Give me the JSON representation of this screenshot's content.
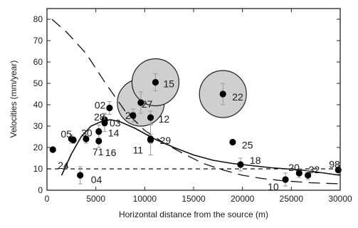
{
  "chart_data": {
    "type": "scatter",
    "xlabel": "Horizontal distance from the source (m)",
    "ylabel": "Velocities (mm/year)",
    "xlim": [
      0,
      30000
    ],
    "ylim": [
      0,
      85
    ],
    "x_ticks": [
      0,
      5000,
      10000,
      15000,
      20000,
      25000,
      30000
    ],
    "y_ticks": [
      0,
      10,
      20,
      30,
      40,
      50,
      60,
      70,
      80
    ],
    "x_tick_labels": [
      "0",
      "5000",
      "10000",
      "15000",
      "20000",
      "25000",
      "30000"
    ],
    "y_tick_labels": [
      "0",
      "10",
      "20",
      "30",
      "40",
      "50",
      "60",
      "70",
      "80"
    ],
    "grid": false,
    "points": [
      {
        "label": "24",
        "x": 600,
        "y": 19,
        "err": 0,
        "circle": false
      },
      {
        "label": "05",
        "x": 2500,
        "y": 24,
        "err": 2,
        "circle": false
      },
      {
        "label": "30",
        "x": 2700,
        "y": 23.5,
        "err": 1.5,
        "circle": false
      },
      {
        "label": "71",
        "x": 4000,
        "y": 24,
        "err": 2,
        "circle": false
      },
      {
        "label": "04",
        "x": 3400,
        "y": 7,
        "err": 4,
        "circle": false
      },
      {
        "label": "16",
        "x": 5300,
        "y": 23,
        "err": 3,
        "circle": false
      },
      {
        "label": "14",
        "x": 5300,
        "y": 27.5,
        "err": 3,
        "circle": false
      },
      {
        "label": "28",
        "x": 5900,
        "y": 33,
        "err": 3,
        "circle": false
      },
      {
        "label": "02",
        "x": 6400,
        "y": 38.5,
        "err": 3,
        "circle": false
      },
      {
        "label": "03",
        "x": 5900,
        "y": 31.5,
        "err": 4,
        "circle": false
      },
      {
        "label": "23",
        "x": 8800,
        "y": 35,
        "err": 3,
        "circle": false
      },
      {
        "label": "12",
        "x": 10600,
        "y": 34,
        "err": 3,
        "circle": false
      },
      {
        "label": "11",
        "x": 10600,
        "y": 23.5,
        "err": 7,
        "circle": false
      },
      {
        "label": "29",
        "x": 10600,
        "y": 24,
        "err": 2,
        "circle": false
      },
      {
        "label": "27",
        "x": 9600,
        "y": 41,
        "err": 5,
        "circle": true,
        "radius_data": 5
      },
      {
        "label": "15",
        "x": 11100,
        "y": 50.5,
        "err": 4,
        "circle": true,
        "radius_data": 5
      },
      {
        "label": "22",
        "x": 18000,
        "y": 45,
        "err": 5,
        "circle": true,
        "radius_data": 5
      },
      {
        "label": "25",
        "x": 19000,
        "y": 22.5,
        "err": 1,
        "circle": false
      },
      {
        "label": "18",
        "x": 19800,
        "y": 12,
        "err": 3,
        "circle": false
      },
      {
        "label": "10",
        "x": 24400,
        "y": 5,
        "err": 3,
        "circle": false
      },
      {
        "label": "20",
        "x": 25800,
        "y": 8,
        "err": 2,
        "circle": false
      },
      {
        "label": "32",
        "x": 26700,
        "y": 7,
        "err": 2,
        "circle": false
      },
      {
        "label": "98",
        "x": 29800,
        "y": 9.5,
        "err": 2,
        "circle": false
      }
    ],
    "lines": [
      {
        "name": "dashed_curve",
        "style": "long-dash",
        "points": [
          [
            500,
            80
          ],
          [
            2000,
            74
          ],
          [
            4000,
            64
          ],
          [
            6000,
            50
          ],
          [
            8000,
            37
          ],
          [
            10000,
            28
          ],
          [
            12000,
            22
          ],
          [
            14000,
            17
          ],
          [
            16000,
            12.5
          ],
          [
            18000,
            9.5
          ],
          [
            20000,
            7
          ],
          [
            22000,
            5.5
          ],
          [
            24000,
            4.5
          ],
          [
            27000,
            3.5
          ],
          [
            30000,
            3
          ]
        ]
      },
      {
        "name": "solid_curve",
        "style": "solid",
        "points": [
          [
            1500,
            7
          ],
          [
            2500,
            17
          ],
          [
            3500,
            25
          ],
          [
            4500,
            30
          ],
          [
            5500,
            32
          ],
          [
            6500,
            33
          ],
          [
            7500,
            32
          ],
          [
            9000,
            29
          ],
          [
            11000,
            24
          ],
          [
            13000,
            20
          ],
          [
            15000,
            16.5
          ],
          [
            17000,
            14
          ],
          [
            19000,
            12.5
          ],
          [
            21000,
            11.5
          ],
          [
            23000,
            10.5
          ],
          [
            26000,
            9.5
          ],
          [
            30000,
            7
          ]
        ]
      },
      {
        "name": "reference_dashed",
        "style": "short-dash",
        "points": [
          [
            0,
            10
          ],
          [
            30000,
            10
          ]
        ]
      }
    ]
  }
}
